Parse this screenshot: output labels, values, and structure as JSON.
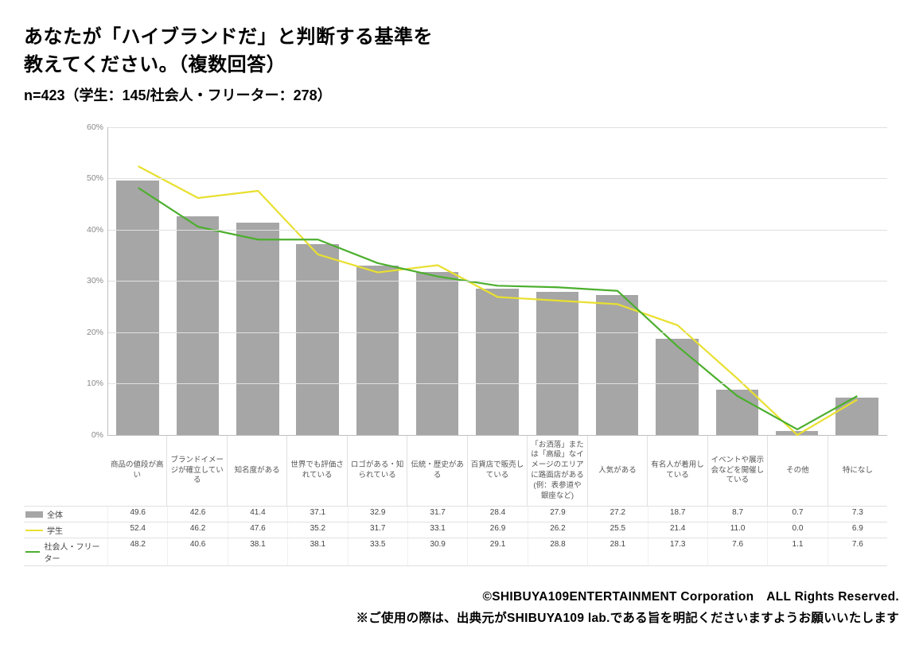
{
  "title_line1": "あなたが「ハイブランドだ」と判断する基準を",
  "title_line2": "教えてください。（複数回答）",
  "subtitle": "n=423（学生：145/社会人・フリーター：278）",
  "chart": {
    "type": "bar+line",
    "y_max": 60,
    "y_ticks": [
      0,
      10,
      20,
      30,
      40,
      50,
      60
    ],
    "y_tick_suffix": "%",
    "bar_color": "#a6a6a6",
    "grid_color": "#e0e0e0",
    "axis_color": "#bfbfbf",
    "background_color": "#ffffff",
    "tick_font_color": "#888888",
    "categories": [
      "商品の値段が高い",
      "ブランドイメージが確立している",
      "知名度がある",
      "世界でも評価されている",
      "ロゴがある・知られている",
      "伝統・歴史がある",
      "百貨店で販売している",
      "「お洒落」または「高級」なイメージのエリアに路面店がある(例：表参道や銀座など)",
      "人気がある",
      "有名人が着用している",
      "イベントや展示会などを開催している",
      "その他",
      "特になし"
    ],
    "series": [
      {
        "key": "overall",
        "label": "全体",
        "style": "bar",
        "values": [
          49.6,
          42.6,
          41.4,
          37.1,
          32.9,
          31.7,
          28.4,
          27.9,
          27.2,
          18.7,
          8.7,
          0.7,
          7.3
        ],
        "color": "#a6a6a6",
        "swatch_type": "bar"
      },
      {
        "key": "student",
        "label": "学生",
        "style": "line",
        "values": [
          52.4,
          46.2,
          47.6,
          35.2,
          31.7,
          33.1,
          26.9,
          26.2,
          25.5,
          21.4,
          11.0,
          0.0,
          6.9
        ],
        "color": "#e8e030",
        "line_width": 2.2,
        "swatch_type": "line"
      },
      {
        "key": "worker",
        "label": "社会人・フリーター",
        "style": "line",
        "values": [
          48.2,
          40.6,
          38.1,
          38.1,
          33.5,
          30.9,
          29.1,
          28.8,
          28.1,
          17.3,
          7.6,
          1.1,
          7.6
        ],
        "color": "#4caf2e",
        "line_width": 2.2,
        "swatch_type": "line"
      }
    ]
  },
  "footer_line1": "©SHIBUYA109ENTERTAINMENT Corporation　ALL Rights Reserved.",
  "footer_line2": "※ご使用の際は、出典元がSHIBUYA109 lab.である旨を明記くださいますようお願いいたします"
}
